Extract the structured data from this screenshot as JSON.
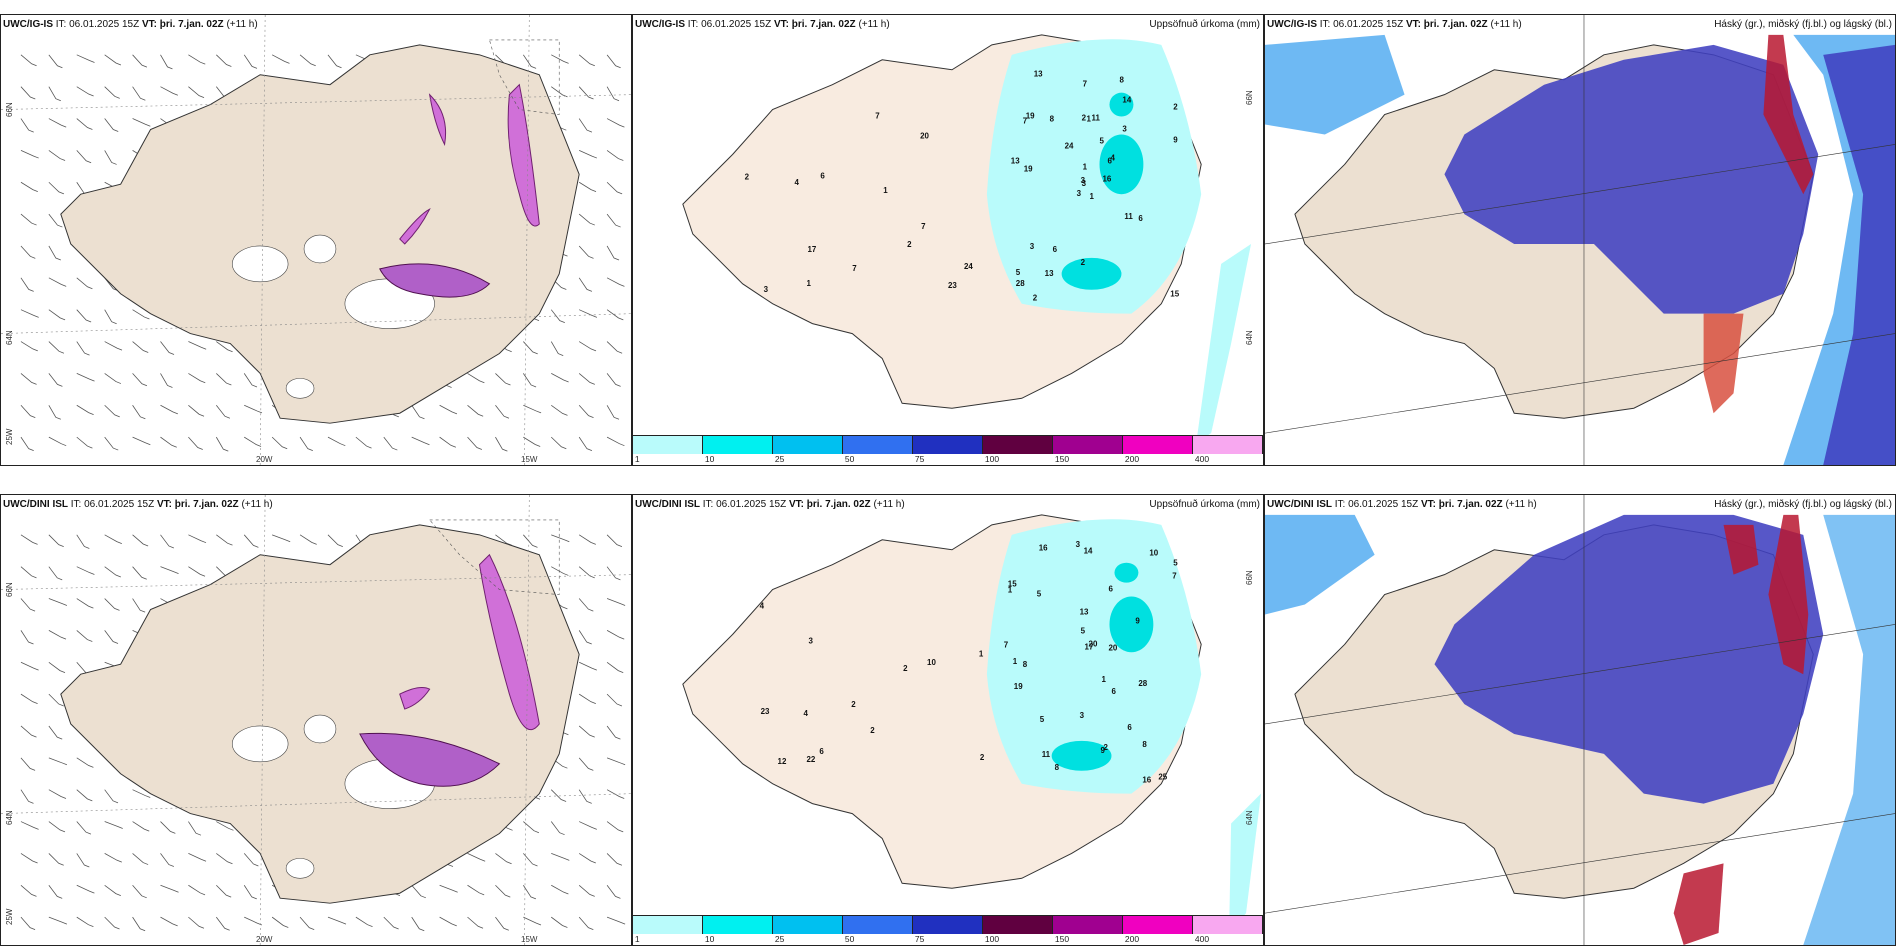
{
  "rows": [
    {
      "model": "UWC/IG-IS",
      "it_label": "IT:",
      "it_value": "06.01.2025 15Z",
      "vt_label": "VT:",
      "vt_value": "þri. 7.jan. 02Z",
      "lead": "(+11 h)",
      "panel2_title": "Uppsöfnuð úrkoma (mm)",
      "panel3_title": "Háský (gr.), miðský (fj.bl.) og lágský (bl.)",
      "precip_labels": [
        "1",
        "7",
        "3",
        "5",
        "6",
        "6",
        "8",
        "11",
        "14",
        "16",
        "13",
        "15",
        "19",
        "2",
        "3",
        "3",
        "2",
        "2",
        "5",
        "3",
        "24",
        "28",
        "13",
        "1",
        "4",
        "6",
        "19",
        "7",
        "13",
        "11",
        "9",
        "3",
        "2",
        "1",
        "8",
        "20",
        "17",
        "23",
        "24",
        "7",
        "7",
        "6",
        "4",
        "2",
        "1",
        "2",
        "1",
        "3",
        "7"
      ]
    },
    {
      "model": "UWC/DINI ISL",
      "it_label": "IT:",
      "it_value": "06.01.2025 15Z",
      "vt_label": "VT:",
      "vt_value": "þri. 7.jan. 02Z",
      "lead": "(+11 h)",
      "panel2_title": "Uppsöfnuð úrkoma (mm)",
      "panel3_title": "Háský (gr.), miðský (fj.bl.) og lágský (bl.)",
      "precip_labels": [
        "7",
        "14",
        "9",
        "5",
        "15",
        "25",
        "8",
        "6",
        "13",
        "10",
        "20",
        "28",
        "3",
        "1",
        "5",
        "5",
        "2",
        "1",
        "1",
        "3",
        "6",
        "8",
        "7",
        "5",
        "11",
        "17",
        "6",
        "16",
        "8",
        "9",
        "19",
        "16",
        "20",
        "12",
        "22",
        "23",
        "10",
        "4",
        "6",
        "3",
        "2",
        "2",
        "2",
        "1",
        "2",
        "4"
      ]
    }
  ],
  "colorbar": {
    "ticks": [
      "1",
      "10",
      "25",
      "50",
      "75",
      "100",
      "150",
      "200",
      "400"
    ],
    "colors": [
      "#b9fbfb",
      "#00f0f0",
      "#00c0f0",
      "#3070f0",
      "#2030c0",
      "#600040",
      "#a00090",
      "#f000c0",
      "#f8a8f0"
    ]
  },
  "grid_labels": {
    "lat_66": "66N",
    "lat_64": "64N",
    "lon_25": "25W",
    "lon_20": "20W",
    "lon_15": "15W"
  },
  "colors": {
    "land": "#ece0d1",
    "land_precip": "#f8ebe0",
    "precip_light": "#b9fbfb",
    "precip_mid": "#00e0e0",
    "cloud_high": "#b81830",
    "cloud_mid": "#4040c0",
    "cloud_low": "#4aa8f0",
    "wind_precip": "#a040c0"
  }
}
